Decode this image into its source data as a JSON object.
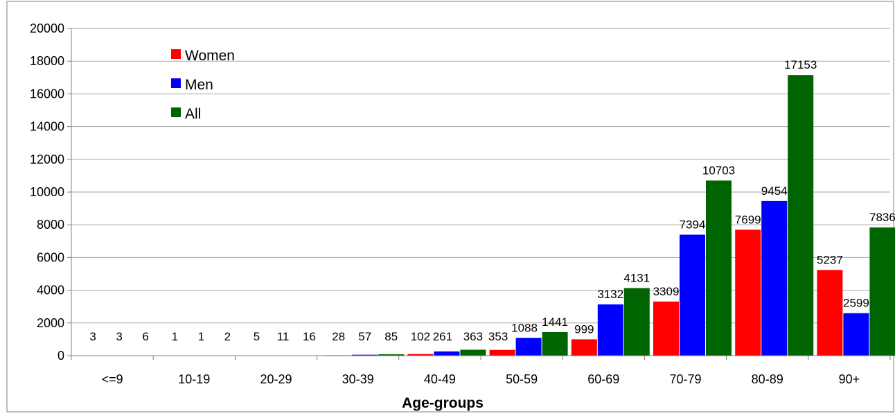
{
  "chart_data": {
    "type": "bar",
    "title": "",
    "xlabel": "Age-groups",
    "ylabel": "",
    "categories": [
      "<=9",
      "10-19",
      "20-29",
      "30-39",
      "40-49",
      "50-59",
      "60-69",
      "70-79",
      "80-89",
      "90+"
    ],
    "series": [
      {
        "name": "Women",
        "color": "#ff0000",
        "values": [
          3,
          1,
          5,
          28,
          102,
          353,
          999,
          3309,
          7699,
          5237
        ]
      },
      {
        "name": "Men",
        "color": "#0000ff",
        "values": [
          3,
          1,
          11,
          57,
          261,
          1088,
          3132,
          7394,
          9454,
          2599
        ]
      },
      {
        "name": "All",
        "color": "#006400",
        "values": [
          6,
          2,
          16,
          85,
          363,
          1441,
          4131,
          10703,
          17153,
          7836
        ]
      }
    ],
    "ylim": [
      0,
      20000
    ],
    "yticks": [
      0,
      2000,
      4000,
      6000,
      8000,
      10000,
      12000,
      14000,
      16000,
      18000,
      20000
    ],
    "grid": true,
    "legend_position": "top-left"
  }
}
